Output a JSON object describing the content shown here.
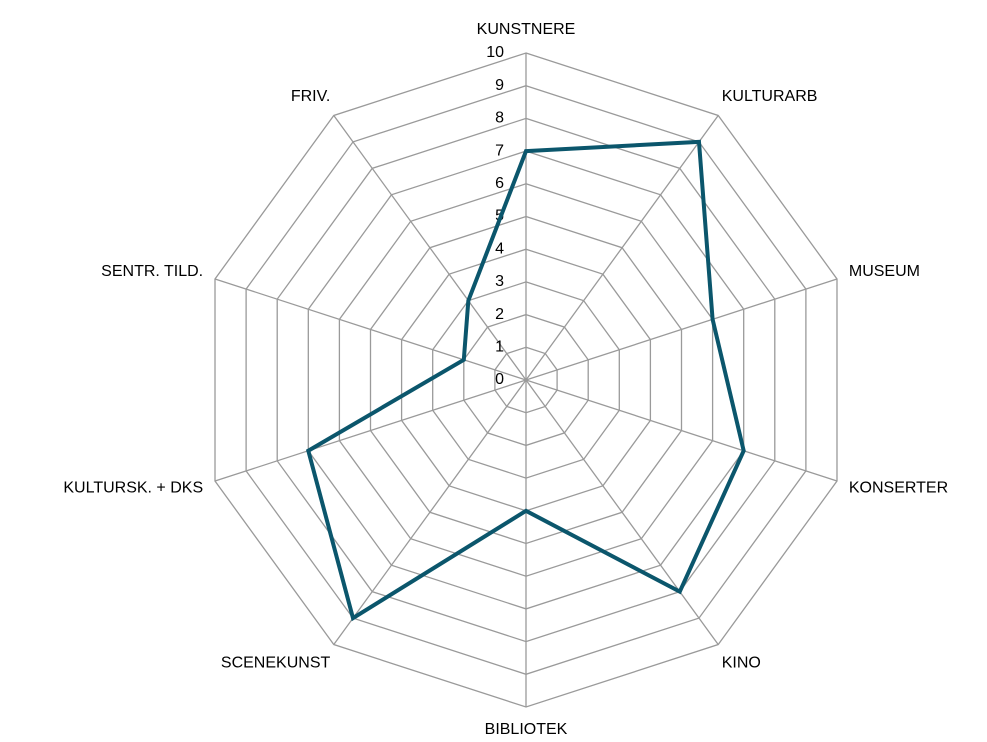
{
  "chart_data": {
    "type": "radar",
    "categories": [
      "KUNSTNERE",
      "KULTURARB",
      "MUSEUM",
      "KONSERTER",
      "KINO",
      "BIBLIOTEK",
      "SCENEKUNST",
      "KULTURSK. + DKS",
      "SENTR. TILD.",
      "FRIV."
    ],
    "series": [
      {
        "color": "#0b566c",
        "values": [
          7,
          9,
          6,
          7,
          8,
          4,
          9,
          7,
          2,
          3
        ]
      }
    ],
    "ylim": [
      0,
      10
    ],
    "yticks": [
      0,
      1,
      2,
      3,
      4,
      5,
      6,
      7,
      8,
      9,
      10
    ],
    "grid": true
  }
}
